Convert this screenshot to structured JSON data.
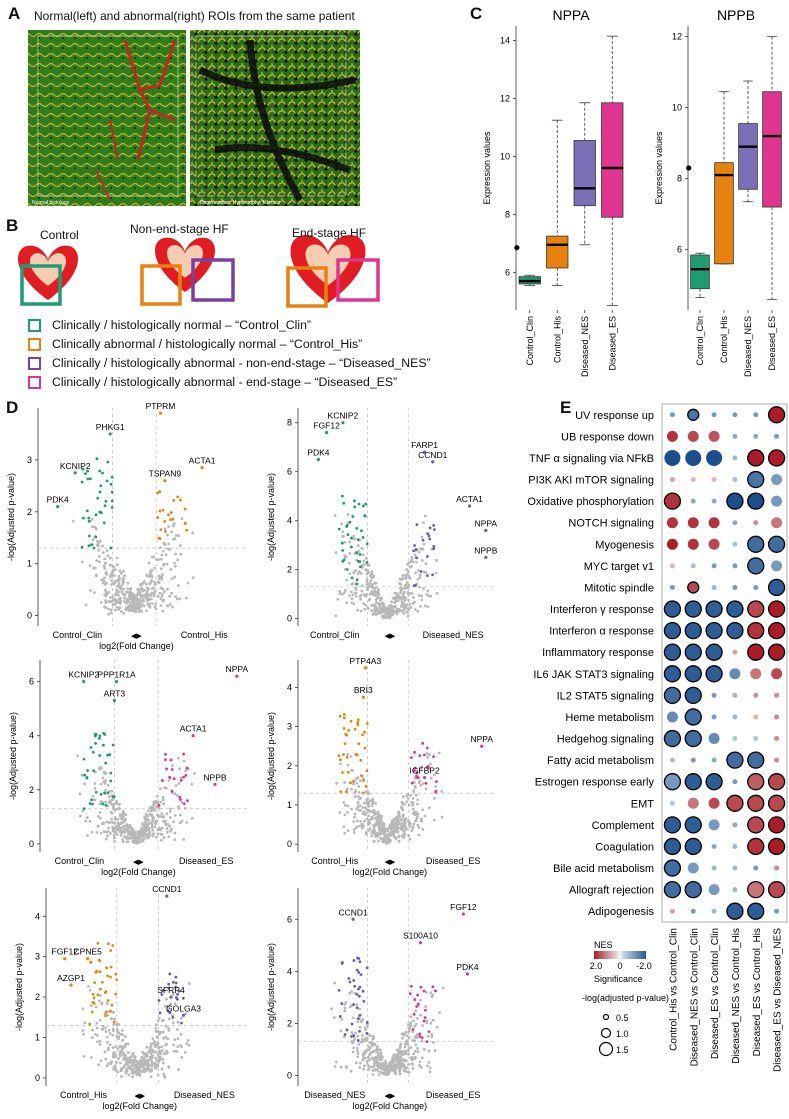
{
  "panels": {
    "a": {
      "letter": "A",
      "caption": "Normal(left) and abnormal(right) ROIs from the same patient",
      "left_label": "Normal histology",
      "right_label": "Degeneration, Hypertrophy, Fibrosis"
    },
    "b": {
      "letter": "B",
      "titles": [
        "Control",
        "Non-end-stage HF",
        "End-stage HF"
      ],
      "legend": [
        {
          "text": "Clinically / histologically normal – “Control_Clin”",
          "color": "#1e9b73"
        },
        {
          "text": "Clinically abnormal / histologically normal – “Control_His”",
          "color": "#e8820e"
        },
        {
          "text": "Clinically / histologically abnormal - non-end-stage – “Diseased_NES”",
          "color": "#7b3fa0"
        },
        {
          "text": "Clinically / histologically abnormal - end-stage – “Diseased_ES”",
          "color": "#e0358f"
        }
      ]
    },
    "c": {
      "letter": "C"
    },
    "d": {
      "letter": "D"
    },
    "e": {
      "letter": "E"
    }
  },
  "chart_data": [
    {
      "type": "box",
      "title": "NPPA",
      "ylabel": "Expression values",
      "ylim": [
        4.7,
        14.5
      ],
      "yticks": [
        6,
        8,
        10,
        12,
        14
      ],
      "categories": [
        "Control_Clin",
        "Control_His",
        "Diseased_NES",
        "Diseased_ES"
      ],
      "colors": [
        "#1e9b73",
        "#e8820e",
        "#7b6fb8",
        "#e0358f"
      ],
      "boxes": [
        {
          "whislo": 5.55,
          "q1": 5.6,
          "med": 5.7,
          "q3": 5.85,
          "whishi": 5.9,
          "outliers": [
            6.85
          ]
        },
        {
          "whislo": 5.55,
          "q1": 6.15,
          "med": 6.95,
          "q3": 7.25,
          "whishi": 11.25,
          "outliers": []
        },
        {
          "whislo": 6.95,
          "q1": 8.3,
          "med": 8.9,
          "q3": 10.55,
          "whishi": 11.85,
          "outliers": []
        },
        {
          "whislo": 4.85,
          "q1": 7.9,
          "med": 9.6,
          "q3": 11.85,
          "whishi": 14.15,
          "outliers": []
        }
      ]
    },
    {
      "type": "box",
      "title": "NPPB",
      "ylabel": "Expression values",
      "ylim": [
        4.3,
        12.3
      ],
      "yticks": [
        6,
        8,
        10,
        12
      ],
      "categories": [
        "Control_Clin",
        "Control_His",
        "Diseased_NES",
        "Diseased_ES"
      ],
      "colors": [
        "#1e9b73",
        "#e8820e",
        "#7b6fb8",
        "#e0358f"
      ],
      "boxes": [
        {
          "whislo": 4.65,
          "q1": 4.9,
          "med": 5.45,
          "q3": 5.85,
          "whishi": 5.9,
          "outliers": [
            8.3
          ]
        },
        {
          "whislo": 5.6,
          "q1": 5.6,
          "med": 8.1,
          "q3": 8.45,
          "whishi": 10.45,
          "outliers": []
        },
        {
          "whislo": 7.35,
          "q1": 7.7,
          "med": 8.9,
          "q3": 9.55,
          "whishi": 10.75,
          "outliers": []
        },
        {
          "whislo": 4.6,
          "q1": 7.2,
          "med": 9.2,
          "q3": 10.45,
          "whishi": 12.0,
          "outliers": []
        }
      ]
    },
    {
      "type": "scatter",
      "ylabel": "-log(Adjusted p-value)",
      "xlabel": "log2(Fold Change)",
      "left_group": "Control_Clin",
      "right_group": "Control_His",
      "ylim": [
        -0.2,
        4.0
      ],
      "yticks": [
        0,
        1,
        2,
        3
      ],
      "left_color": "#1e9b73",
      "right_color": "#e8820e",
      "labels": [
        {
          "text": "PTPRM",
          "x": 0.6,
          "y": 3.9
        },
        {
          "text": "PHKG1",
          "x": -0.55,
          "y": 3.5
        },
        {
          "text": "ACTA1",
          "x": 1.55,
          "y": 2.85
        },
        {
          "text": "KCNIP2",
          "x": -1.35,
          "y": 2.75
        },
        {
          "text": "TSPAN9",
          "x": 0.7,
          "y": 2.6
        },
        {
          "text": "PDK4",
          "x": -1.75,
          "y": 2.1
        }
      ]
    },
    {
      "type": "scatter",
      "ylabel": "-log(Adjusted p-value)",
      "xlabel": "",
      "left_group": "Control_Clin",
      "right_group": "Diseased_NES",
      "ylim": [
        -0.3,
        8.6
      ],
      "yticks": [
        0,
        2,
        4,
        6,
        8
      ],
      "left_color": "#1e9b73",
      "right_color": "#6a5bb8",
      "labels": [
        {
          "text": "KCNIP2",
          "x": -1.1,
          "y": 8.0
        },
        {
          "text": "FGF12",
          "x": -1.5,
          "y": 7.6
        },
        {
          "text": "FARP1",
          "x": 0.9,
          "y": 6.8
        },
        {
          "text": "PDK4",
          "x": -1.7,
          "y": 6.5
        },
        {
          "text": "CCND1",
          "x": 1.1,
          "y": 6.4
        },
        {
          "text": "ACTA1",
          "x": 2.0,
          "y": 4.6
        },
        {
          "text": "NPPA",
          "x": 2.4,
          "y": 3.6
        },
        {
          "text": "NPPB",
          "x": 2.4,
          "y": 2.5
        }
      ]
    },
    {
      "type": "scatter",
      "ylabel": "-log(Adjusted p-value)",
      "xlabel": "log2(Fold Change)",
      "left_group": "Control_Clin",
      "right_group": "Diseased_ES",
      "ylim": [
        -0.3,
        6.8
      ],
      "yticks": [
        0,
        2,
        4,
        6
      ],
      "left_color": "#1e9b73",
      "right_color": "#e0358f",
      "labels": [
        {
          "text": "NPPA",
          "x": 2.3,
          "y": 6.2
        },
        {
          "text": "KCNIP2",
          "x": -1.2,
          "y": 6.0
        },
        {
          "text": "PPP1R1A",
          "x": -0.45,
          "y": 6.0
        },
        {
          "text": "ART3",
          "x": -0.5,
          "y": 5.3
        },
        {
          "text": "ACTA1",
          "x": 1.3,
          "y": 4.0
        },
        {
          "text": "NPPB",
          "x": 1.8,
          "y": 2.2
        }
      ]
    },
    {
      "type": "scatter",
      "ylabel": "-log(Adjusted p-value)",
      "xlabel": "log2(Fold Change)",
      "left_group": "Control_His",
      "right_group": "Diseased_ES",
      "ylim": [
        -0.2,
        4.7
      ],
      "yticks": [
        0,
        1,
        2,
        3,
        4
      ],
      "left_color": "#e8820e",
      "right_color": "#e0358f",
      "labels": [
        {
          "text": "PTP4A3",
          "x": -0.55,
          "y": 4.5
        },
        {
          "text": "BRI3",
          "x": -0.6,
          "y": 3.75
        },
        {
          "text": "NPPA",
          "x": 2.3,
          "y": 2.5
        },
        {
          "text": "IGFBP2",
          "x": 0.9,
          "y": 1.7
        }
      ]
    },
    {
      "type": "scatter",
      "ylabel": "-log(Adjusted p-value)",
      "xlabel": "log2(Fold Change)",
      "left_group": "Control_His",
      "right_group": "Diseased_NES",
      "ylim": [
        -0.2,
        4.7
      ],
      "yticks": [
        0,
        1,
        2,
        3,
        4
      ],
      "left_color": "#e8820e",
      "right_color": "#6a5bb8",
      "labels": [
        {
          "text": "CCND1",
          "x": 0.7,
          "y": 4.5
        },
        {
          "text": "FGF12",
          "x": -1.75,
          "y": 2.95
        },
        {
          "text": "CPNE5",
          "x": -1.2,
          "y": 2.95
        },
        {
          "text": "AZGP1",
          "x": -1.6,
          "y": 2.3
        },
        {
          "text": "SFRP4",
          "x": 0.8,
          "y": 2.0
        },
        {
          "text": "GOLGA3",
          "x": 1.1,
          "y": 1.55
        }
      ]
    },
    {
      "type": "scatter",
      "ylabel": "-log(Adjusted p-value)",
      "xlabel": "log2(Fold Change)",
      "left_group": "Diseased_NES",
      "right_group": "Diseased_ES",
      "ylim": [
        -0.4,
        7.2
      ],
      "yticks": [
        0,
        2,
        4,
        6
      ],
      "left_color": "#6a5bb8",
      "right_color": "#e0358f",
      "labels": [
        {
          "text": "CCND1",
          "x": -0.85,
          "y": 6.0
        },
        {
          "text": "FGF12",
          "x": 1.85,
          "y": 6.2
        },
        {
          "text": "S100A10",
          "x": 0.8,
          "y": 5.1
        },
        {
          "text": "PDK4",
          "x": 1.95,
          "y": 3.9
        }
      ]
    },
    {
      "type": "heatmap",
      "comment": "dot plot; sign: positive = red, negative = blue; sig 0/1 = black outline",
      "rows": [
        "UV response up",
        "UB response down",
        "TNF α signaling via NFkB",
        "PI3K AKI mTOR signaling",
        "Oxidative phosphorylation",
        "NOTCH signaling",
        "Myogenesis",
        "MYC target v1",
        "Mitotic spindle",
        "Interferon γ response",
        "Interferon α response",
        "Inflammatory response",
        "IL6 JAK STAT3 signaling",
        "IL2 STAT5 signaling",
        "Heme metabolism",
        "Hedgehog signaling",
        "Fatty acid metabolism",
        "Estrogen response early",
        "EMT",
        "Complement",
        "Coagulation",
        "Bile acid metabolism",
        "Allograft rejection",
        "Adipogenesis"
      ],
      "columns": [
        "Control_His vs Control_Clin",
        "Diseased_NES vs Control_Clin",
        "Diseased_ES vs Control_Clin",
        "Diseased_NES vs Control_His",
        "Diseased_ES vs Control_His",
        "Diseased_ES vs Diseased_NES"
      ],
      "nes": [
        [
          -1.0,
          -1.5,
          -1.0,
          -1.0,
          -1.0,
          2.0
        ],
        [
          1.8,
          1.6,
          1.5,
          -0.8,
          -0.8,
          -1.0
        ],
        [
          -2.0,
          -2.0,
          -2.0,
          -0.6,
          2.0,
          2.0
        ],
        [
          0.8,
          0.6,
          0.6,
          -0.5,
          -1.5,
          -1.0
        ],
        [
          1.8,
          -0.8,
          -0.8,
          -2.0,
          -2.2,
          -1.0
        ],
        [
          1.8,
          1.8,
          1.8,
          -0.8,
          1.0,
          1.2
        ],
        [
          2.0,
          1.8,
          1.6,
          -0.5,
          -1.6,
          -1.6
        ],
        [
          0.6,
          -0.5,
          -1.0,
          -1.0,
          -1.6,
          -1.0
        ],
        [
          -1.0,
          1.6,
          -0.6,
          -1.0,
          -1.0,
          -1.8
        ],
        [
          -1.8,
          -1.8,
          -1.8,
          -1.8,
          1.6,
          2.0
        ],
        [
          -1.8,
          -1.8,
          -1.8,
          -1.8,
          1.8,
          2.2
        ],
        [
          -1.8,
          -1.8,
          -1.8,
          0.8,
          2.2,
          2.0
        ],
        [
          -1.8,
          -1.8,
          -1.8,
          -1.2,
          1.2,
          1.6
        ],
        [
          -1.6,
          -1.8,
          -1.0,
          -0.6,
          1.0,
          1.0
        ],
        [
          -1.2,
          -1.6,
          -1.0,
          -0.6,
          0.6,
          1.0
        ],
        [
          -1.6,
          -1.6,
          -1.2,
          -0.4,
          -0.4,
          1.0
        ],
        [
          -0.5,
          -1.0,
          -0.8,
          -1.6,
          -1.6,
          1.0
        ],
        [
          -1.0,
          -1.8,
          -1.8,
          -1.0,
          1.4,
          1.6
        ],
        [
          -0.4,
          1.2,
          1.6,
          1.6,
          1.6,
          1.6
        ],
        [
          -1.8,
          -1.8,
          -1.0,
          -0.8,
          1.6,
          2.0
        ],
        [
          -1.8,
          -1.8,
          -0.8,
          -0.6,
          1.8,
          2.2
        ],
        [
          -1.6,
          -1.0,
          -0.6,
          -0.6,
          -1.0,
          1.0
        ],
        [
          -1.6,
          -1.6,
          -1.0,
          -0.6,
          1.2,
          1.6
        ],
        [
          0.8,
          -1.0,
          -0.6,
          -1.8,
          -1.8,
          -1.0
        ]
      ],
      "significant": [
        [
          0,
          1,
          0,
          0,
          0,
          1
        ],
        [
          0,
          0,
          0,
          0,
          0,
          0
        ],
        [
          0,
          0,
          0,
          0,
          1,
          1
        ],
        [
          0,
          0,
          0,
          0,
          1,
          0
        ],
        [
          1,
          0,
          0,
          1,
          1,
          0
        ],
        [
          0,
          0,
          0,
          0,
          0,
          0
        ],
        [
          0,
          0,
          0,
          0,
          1,
          1
        ],
        [
          0,
          0,
          0,
          0,
          1,
          0
        ],
        [
          0,
          1,
          0,
          0,
          0,
          1
        ],
        [
          1,
          1,
          1,
          1,
          1,
          1
        ],
        [
          1,
          1,
          1,
          1,
          1,
          1
        ],
        [
          1,
          1,
          1,
          0,
          1,
          1
        ],
        [
          1,
          1,
          1,
          0,
          0,
          0
        ],
        [
          1,
          1,
          0,
          0,
          0,
          0
        ],
        [
          0,
          1,
          0,
          0,
          0,
          0
        ],
        [
          1,
          1,
          0,
          0,
          0,
          0
        ],
        [
          0,
          0,
          0,
          1,
          1,
          0
        ],
        [
          1,
          1,
          1,
          0,
          1,
          1
        ],
        [
          0,
          0,
          0,
          1,
          1,
          1
        ],
        [
          1,
          1,
          0,
          0,
          1,
          1
        ],
        [
          1,
          1,
          0,
          0,
          1,
          1
        ],
        [
          1,
          0,
          0,
          0,
          0,
          0
        ],
        [
          1,
          1,
          0,
          0,
          1,
          1
        ],
        [
          0,
          0,
          0,
          1,
          1,
          0
        ]
      ],
      "size": [
        [
          1,
          2,
          1,
          1,
          1,
          3
        ],
        [
          2,
          2,
          2,
          1,
          1,
          1
        ],
        [
          3,
          3,
          3,
          1,
          3,
          3
        ],
        [
          1,
          1,
          1,
          1,
          3,
          2
        ],
        [
          3,
          1,
          1,
          3,
          3,
          2
        ],
        [
          2,
          2,
          2,
          1,
          1,
          2
        ],
        [
          2,
          2,
          2,
          1,
          3,
          3
        ],
        [
          1,
          1,
          1,
          1,
          3,
          2
        ],
        [
          1,
          2,
          1,
          1,
          1,
          3
        ],
        [
          3,
          3,
          3,
          3,
          3,
          3
        ],
        [
          3,
          3,
          3,
          3,
          3,
          3
        ],
        [
          3,
          3,
          3,
          1,
          3,
          3
        ],
        [
          3,
          3,
          3,
          2,
          2,
          2
        ],
        [
          3,
          3,
          1,
          1,
          1,
          1
        ],
        [
          2,
          3,
          1,
          1,
          1,
          1
        ],
        [
          3,
          3,
          2,
          1,
          1,
          1
        ],
        [
          1,
          1,
          1,
          3,
          3,
          1
        ],
        [
          3,
          3,
          3,
          1,
          3,
          3
        ],
        [
          1,
          2,
          2,
          3,
          3,
          3
        ],
        [
          3,
          3,
          2,
          1,
          3,
          3
        ],
        [
          3,
          3,
          1,
          1,
          3,
          3
        ],
        [
          3,
          2,
          1,
          1,
          1,
          1
        ],
        [
          3,
          3,
          2,
          1,
          3,
          3
        ],
        [
          1,
          1,
          1,
          3,
          3,
          1
        ]
      ],
      "legend": {
        "title": "NES",
        "ticks": [
          "2.0",
          "0",
          "-2.0"
        ],
        "sig_title": "Significance",
        "sig_sub": "-log(adjusted p-value)",
        "sizes": [
          "0.5",
          "1.0",
          "1.5"
        ]
      }
    }
  ]
}
